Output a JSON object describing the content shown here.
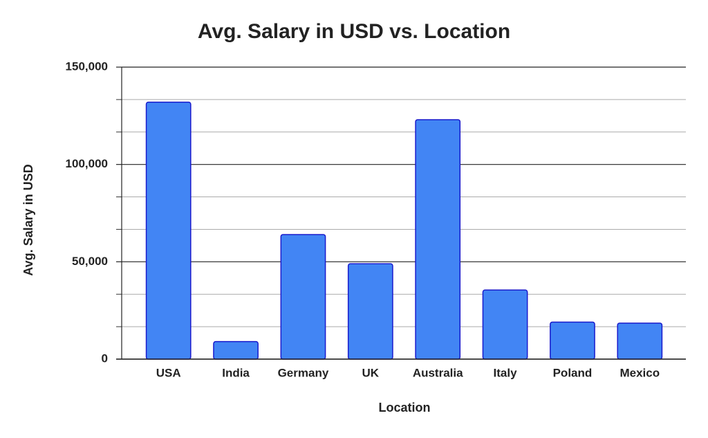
{
  "chart_data": {
    "type": "bar",
    "title": "Avg. Salary in USD vs. Location",
    "x_label": "Location",
    "y_label": "Avg. Salary in USD",
    "categories": [
      "USA",
      "India",
      "Germany",
      "UK",
      "Australia",
      "Italy",
      "Poland",
      "Mexico"
    ],
    "values": [
      132000,
      9000,
      64000,
      49000,
      123000,
      35500,
      19000,
      18500
    ],
    "color": "#4285f4",
    "edge_color": "#1a1acc",
    "ylim": [
      0,
      150000
    ],
    "yticks": [
      0,
      {
        "value": 50000,
        "label": "50,000"
      },
      {
        "value": 100000,
        "label": "100,000"
      },
      {
        "value": 150000,
        "label": "150,000"
      }
    ],
    "grid": true,
    "minor_grid_divisions": 3
  }
}
